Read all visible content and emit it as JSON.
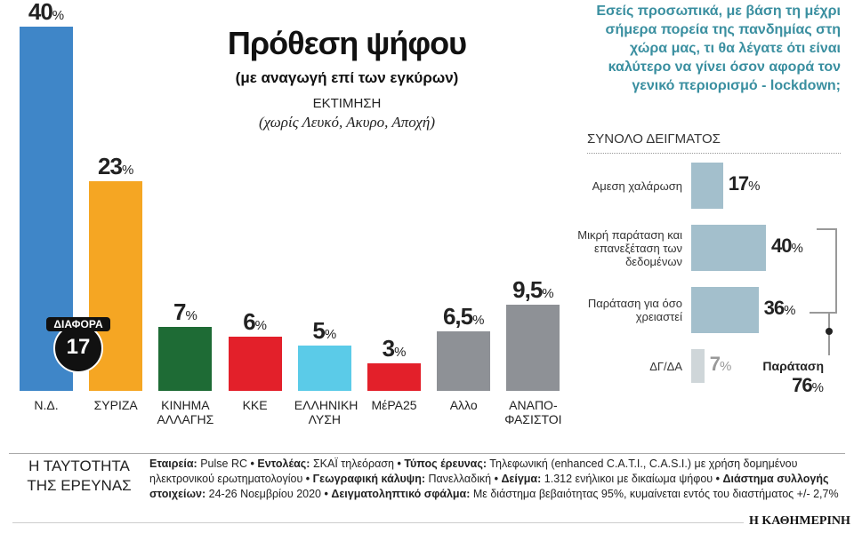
{
  "chart_data": [
    {
      "type": "bar",
      "title": "Πρόθεση ψήφου",
      "subtitle": "(με αναγωγή επί των εγκύρων)",
      "note": "ΕΚΤΙΜΗΣΗ",
      "note_detail": "(χωρίς Λευκό, Ακυρο, Αποχή)",
      "categories": [
        "Ν.Δ.",
        "ΣΥΡΙΖΑ",
        "ΚΙΝΗΜΑ ΑΛΛΑΓΗΣ",
        "ΚΚΕ",
        "ΕΛΛΗΝΙΚΗ ΛΥΣΗ",
        "ΜέΡΑ25",
        "Αλλο",
        "ΑΝΑΠΟ-ΦΑΣΙΣΤΟΙ"
      ],
      "values": [
        40,
        23,
        7,
        6,
        5,
        3,
        6.5,
        9.5
      ],
      "value_labels": [
        "40%",
        "23%",
        "7%",
        "6%",
        "5%",
        "3%",
        "6,5%",
        "9,5%"
      ],
      "colors": [
        "#3f86c8",
        "#f5a623",
        "#1e6b35",
        "#e3202a",
        "#5bcbe8",
        "#e3202a",
        "#8e9196",
        "#8e9196"
      ],
      "annotation": {
        "label": "ΔΙΑΦΟΡΑ",
        "value_label": "17"
      }
    },
    {
      "type": "hbar",
      "title": "Εσείς προσωπικά, με βάση τη μέχρι σήμερα πορεία της πανδημίας στη χώρα μας, τι θα λέγατε ότι είναι καλύτερο να γίνει όσον αφορά τον γενικό περιορισμό - lockdown;",
      "subtitle": "ΣΥΝΟΛΟ ΔΕΙΓΜΑΤΟΣ",
      "categories": [
        "Αμεση χαλάρωση",
        "Μικρή παράταση και επανεξέταση των δεδομένων",
        "Παράταση για όσο χρειαστεί",
        "ΔΓ/ΔΑ"
      ],
      "values": [
        17,
        40,
        36,
        7
      ],
      "value_labels": [
        "17%",
        "40%",
        "36%",
        "7%"
      ],
      "colors": [
        "#a3bfcc",
        "#a3bfcc",
        "#a3bfcc",
        "#cfd6d9"
      ],
      "annotation": {
        "label": "Παράταση",
        "value_label": "76%"
      }
    }
  ],
  "footer": {
    "heading": "Η ΤΑΥΤΟΤΗΤΑ ΤΗΣ ΕΡΕΥΝΑΣ",
    "separator": "•",
    "items": [
      {
        "label": "Εταιρεία:",
        "text": "Pulse RC"
      },
      {
        "label": "Εντολέας:",
        "text": "ΣΚΑΪ τηλεόραση"
      },
      {
        "label": "Τύπος έρευνας:",
        "text": "Τηλεφωνική (enhanced C.A.T.I., C.A.S.I.) με χρήση δομημένου ηλεκτρονικού ερωτηματολογίου"
      },
      {
        "label": "Γεωγραφική κάλυψη:",
        "text": "Πανελλαδική"
      },
      {
        "label": "Δείγμα:",
        "text": "1.312 ενήλικοι με δικαίωμα ψήφου"
      },
      {
        "label": "Διάστημα συλλογής στοιχείων:",
        "text": "24-26 Νοεμβρίου 2020"
      },
      {
        "label": "Δειγματοληπτικό σφάλμα:",
        "text": "Με διάστημα βεβαιότητας 95%, κυμαίνεται εντός του διαστήματος +/- 2,7%"
      }
    ]
  },
  "brand": "Η ΚΑΘΗΜΕΡΙΝΗ"
}
